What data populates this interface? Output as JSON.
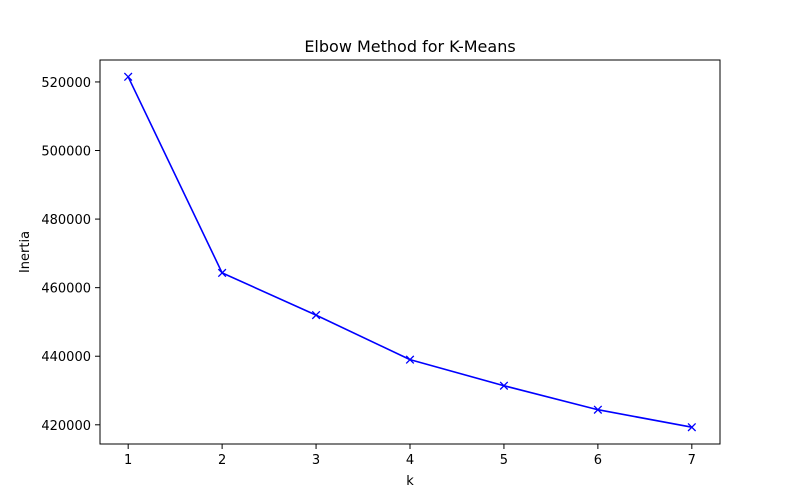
{
  "chart_data": {
    "type": "line",
    "title": "Elbow Method for K-Means",
    "xlabel": "k",
    "ylabel": "Inertia",
    "x": [
      1,
      2,
      3,
      4,
      5,
      6,
      7
    ],
    "series": [
      {
        "values": [
          521500,
          464300,
          452000,
          439000,
          431400,
          424400,
          419300
        ],
        "color": "#0000ff",
        "marker": "x"
      }
    ],
    "xlim": [
      0.7,
      7.3
    ],
    "ylim": [
      414400,
      526400
    ],
    "xticks": [
      "1",
      "2",
      "3",
      "4",
      "5",
      "6",
      "7"
    ],
    "yticks": [
      "420000",
      "440000",
      "460000",
      "480000",
      "500000",
      "520000"
    ],
    "grid": false
  }
}
